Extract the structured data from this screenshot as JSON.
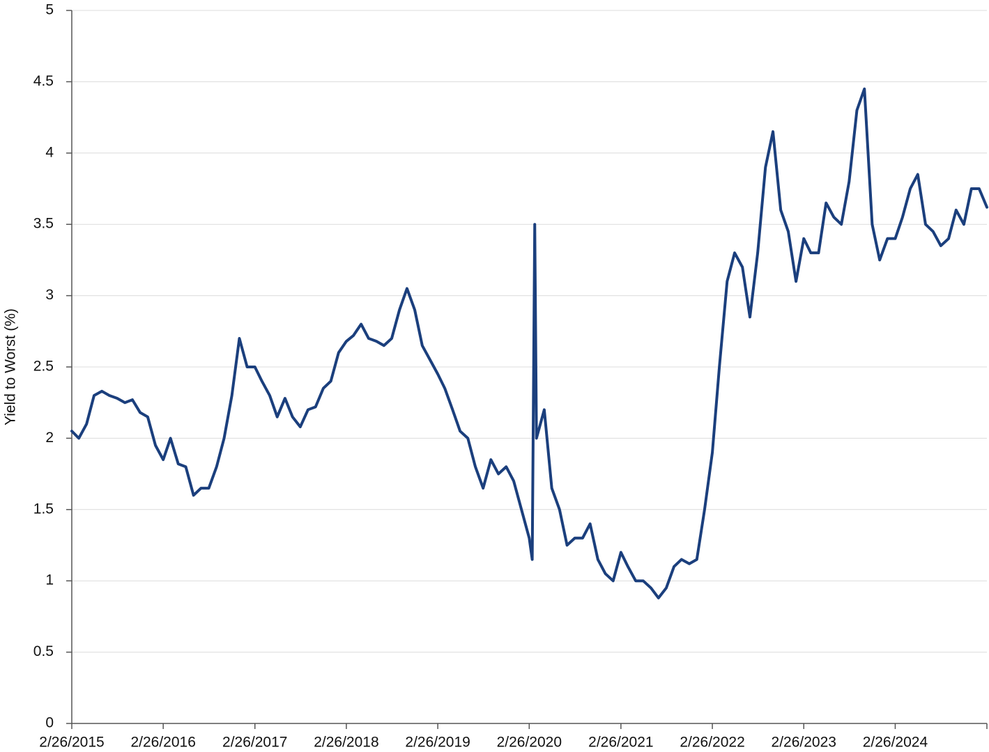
{
  "chart_data": {
    "type": "line",
    "y_label": "Yield to Worst (%)",
    "x": [
      "2015-02-26",
      "2015-03-26",
      "2015-04-26",
      "2015-05-26",
      "2015-06-26",
      "2015-07-26",
      "2015-08-26",
      "2015-09-26",
      "2015-10-26",
      "2015-11-26",
      "2015-12-26",
      "2016-01-26",
      "2016-02-26",
      "2016-03-26",
      "2016-04-26",
      "2016-05-26",
      "2016-06-26",
      "2016-07-26",
      "2016-08-26",
      "2016-09-26",
      "2016-10-26",
      "2016-11-26",
      "2016-12-26",
      "2017-01-26",
      "2017-02-26",
      "2017-03-26",
      "2017-04-26",
      "2017-05-26",
      "2017-06-26",
      "2017-07-26",
      "2017-08-26",
      "2017-09-26",
      "2017-10-26",
      "2017-11-26",
      "2017-12-26",
      "2018-01-26",
      "2018-02-26",
      "2018-03-26",
      "2018-04-26",
      "2018-05-26",
      "2018-06-26",
      "2018-07-26",
      "2018-08-26",
      "2018-09-26",
      "2018-10-26",
      "2018-11-26",
      "2018-12-26",
      "2019-01-26",
      "2019-02-26",
      "2019-03-26",
      "2019-04-26",
      "2019-05-26",
      "2019-06-26",
      "2019-07-26",
      "2019-08-26",
      "2019-09-26",
      "2019-10-26",
      "2019-11-26",
      "2019-12-26",
      "2020-01-26",
      "2020-02-26",
      "2020-03-09",
      "2020-03-19",
      "2020-03-26",
      "2020-04-26",
      "2020-05-26",
      "2020-06-26",
      "2020-07-26",
      "2020-08-26",
      "2020-09-26",
      "2020-10-26",
      "2020-11-26",
      "2020-12-26",
      "2021-01-26",
      "2021-02-26",
      "2021-03-26",
      "2021-04-26",
      "2021-05-26",
      "2021-06-26",
      "2021-07-26",
      "2021-08-26",
      "2021-09-26",
      "2021-10-26",
      "2021-11-26",
      "2021-12-26",
      "2022-01-26",
      "2022-02-26",
      "2022-03-26",
      "2022-04-26",
      "2022-05-26",
      "2022-06-26",
      "2022-07-26",
      "2022-08-26",
      "2022-09-26",
      "2022-10-26",
      "2022-11-26",
      "2022-12-26",
      "2023-01-26",
      "2023-02-26",
      "2023-03-26",
      "2023-04-26",
      "2023-05-26",
      "2023-06-26",
      "2023-07-26",
      "2023-08-26",
      "2023-09-26",
      "2023-10-26",
      "2023-11-26",
      "2023-12-26",
      "2024-01-26",
      "2024-02-26",
      "2024-03-26",
      "2024-04-26",
      "2024-05-26",
      "2024-06-26",
      "2024-07-26",
      "2024-08-26",
      "2024-09-26",
      "2024-10-26",
      "2024-11-26",
      "2024-12-26",
      "2025-01-26",
      "2025-02-26"
    ],
    "series": [
      {
        "name": "Yield to Worst",
        "color": "#1b3f7d",
        "values": [
          2.05,
          2.0,
          2.1,
          2.3,
          2.33,
          2.3,
          2.28,
          2.25,
          2.27,
          2.18,
          2.15,
          1.95,
          1.85,
          2.0,
          1.82,
          1.8,
          1.6,
          1.65,
          1.65,
          1.8,
          2.0,
          2.3,
          2.7,
          2.5,
          2.5,
          2.4,
          2.3,
          2.15,
          2.28,
          2.15,
          2.08,
          2.2,
          2.22,
          2.35,
          2.4,
          2.6,
          2.68,
          2.72,
          2.8,
          2.7,
          2.68,
          2.65,
          2.7,
          2.9,
          3.05,
          2.9,
          2.65,
          2.55,
          2.45,
          2.35,
          2.2,
          2.05,
          2.0,
          1.8,
          1.65,
          1.85,
          1.75,
          1.8,
          1.7,
          1.5,
          1.3,
          1.15,
          3.5,
          2.0,
          2.2,
          1.65,
          1.5,
          1.25,
          1.3,
          1.3,
          1.4,
          1.15,
          1.05,
          1.0,
          1.2,
          1.1,
          1.0,
          1.0,
          0.95,
          0.88,
          0.95,
          1.1,
          1.15,
          1.12,
          1.15,
          1.5,
          1.9,
          2.5,
          3.1,
          3.3,
          3.2,
          2.85,
          3.3,
          3.9,
          4.15,
          3.6,
          3.45,
          3.1,
          3.4,
          3.3,
          3.3,
          3.65,
          3.55,
          3.5,
          3.8,
          4.3,
          4.45,
          3.5,
          3.25,
          3.4,
          3.4,
          3.55,
          3.75,
          3.85,
          3.5,
          3.45,
          3.35,
          3.4,
          3.6,
          3.5,
          3.75,
          3.75,
          3.62
        ]
      }
    ],
    "xlim": [
      "2015-02-26",
      "2025-02-26"
    ],
    "xticks": [
      {
        "value": "2015-02-26",
        "label": "2/26/2015"
      },
      {
        "value": "2016-02-26",
        "label": "2/26/2016"
      },
      {
        "value": "2017-02-26",
        "label": "2/26/2017"
      },
      {
        "value": "2018-02-26",
        "label": "2/26/2018"
      },
      {
        "value": "2019-02-26",
        "label": "2/26/2019"
      },
      {
        "value": "2020-02-26",
        "label": "2/26/2020"
      },
      {
        "value": "2021-02-26",
        "label": "2/26/2021"
      },
      {
        "value": "2022-02-26",
        "label": "2/26/2022"
      },
      {
        "value": "2023-02-26",
        "label": "2/26/2023"
      },
      {
        "value": "2024-02-26",
        "label": "2/26/2024"
      }
    ],
    "ylim": [
      0,
      5
    ],
    "yticks": [
      0,
      0.5,
      1,
      1.5,
      2,
      2.5,
      3,
      3.5,
      4,
      4.5,
      5
    ],
    "grid": true
  }
}
